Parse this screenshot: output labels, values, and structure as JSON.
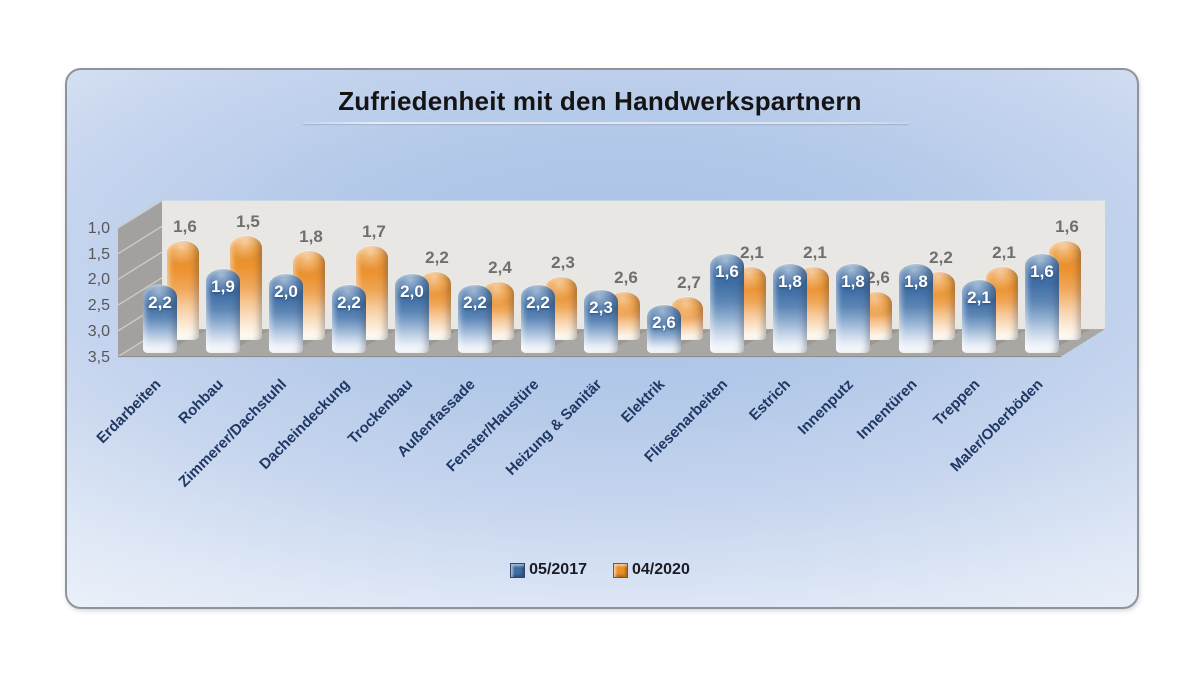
{
  "chart_data": {
    "type": "bar",
    "subtype": "3d-cylinder",
    "title": "Zufriedenheit mit den Handwerkspartnern",
    "categories": [
      "Erdarbeiten",
      "Rohbau",
      "Zimmerer/Dachstuhl",
      "Dacheindeckung",
      "Trockenbau",
      "Außenfassade",
      "Fenster/Haustüre",
      "Heizung & Sanitär",
      "Elektrik",
      "Fliesenarbeiten",
      "Estrich",
      "Innenputz",
      "Innentüren",
      "Treppen",
      "Maler/Oberböden"
    ],
    "series": [
      {
        "name": "05/2017",
        "color": "#3e6ca3",
        "values": [
          2.2,
          1.9,
          2.0,
          2.2,
          2.0,
          2.2,
          2.2,
          2.3,
          2.6,
          1.6,
          1.8,
          1.8,
          1.8,
          2.1,
          1.6
        ]
      },
      {
        "name": "04/2020",
        "color": "#ec8f26",
        "values": [
          1.6,
          1.5,
          1.8,
          1.7,
          2.2,
          2.4,
          2.3,
          2.6,
          2.7,
          2.1,
          2.1,
          2.6,
          2.2,
          2.1,
          1.6
        ]
      }
    ],
    "y_ticks": [
      "1,0",
      "1,5",
      "2,0",
      "2,5",
      "3,0",
      "3,5"
    ],
    "y_tick_values": [
      1.0,
      1.5,
      2.0,
      2.5,
      3.0,
      3.5
    ],
    "ylim": [
      1.0,
      3.5
    ],
    "y_axis_inverted": true,
    "xlabel": "",
    "ylabel": "",
    "grid": "on",
    "legend_position": "bottom",
    "value_label_format": "comma-decimal",
    "wall_colors": {
      "back": "#e9e7e3",
      "side": "#a2a19f",
      "floor": "#a9a7a3",
      "gridline": "#cbcac7"
    }
  }
}
